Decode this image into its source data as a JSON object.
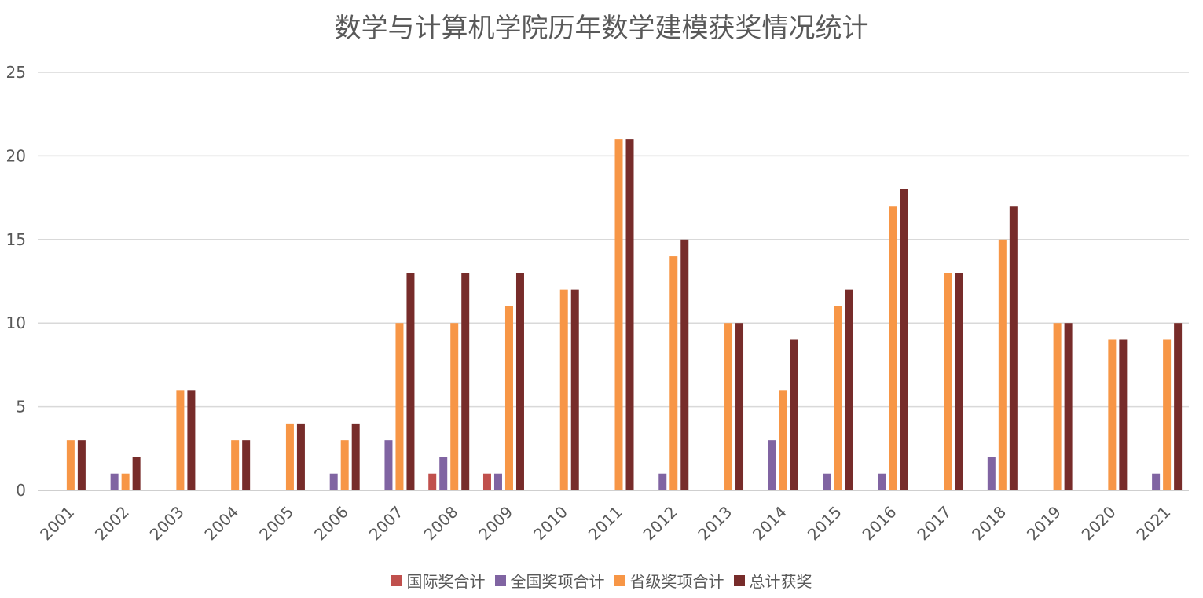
{
  "chart_data": {
    "type": "bar",
    "title": "数学与计算机学院历年数学建模获奖情况统计",
    "categories": [
      "2001",
      "2002",
      "2003",
      "2004",
      "2005",
      "2006",
      "2007",
      "2008",
      "2009",
      "2010",
      "2011",
      "2012",
      "2013",
      "2014",
      "2015",
      "2016",
      "2017",
      "2018",
      "2019",
      "2020",
      "2021"
    ],
    "series": [
      {
        "name": "国际奖合计",
        "color": "#c0504d",
        "values": [
          0,
          0,
          0,
          0,
          0,
          0,
          0,
          1,
          1,
          0,
          0,
          0,
          0,
          0,
          0,
          0,
          0,
          0,
          0,
          0,
          0
        ]
      },
      {
        "name": "全国奖项合计",
        "color": "#8064a2",
        "values": [
          0,
          1,
          0,
          0,
          0,
          1,
          3,
          2,
          1,
          0,
          0,
          1,
          0,
          3,
          1,
          1,
          0,
          2,
          0,
          0,
          1
        ]
      },
      {
        "name": "省级奖项合计",
        "color": "#f79646",
        "values": [
          3,
          1,
          6,
          3,
          4,
          3,
          10,
          10,
          11,
          12,
          21,
          14,
          10,
          6,
          11,
          17,
          13,
          15,
          10,
          9,
          9
        ]
      },
      {
        "name": "总计获奖",
        "color": "#772c2a",
        "values": [
          3,
          2,
          6,
          3,
          4,
          4,
          13,
          13,
          13,
          12,
          21,
          15,
          10,
          9,
          12,
          18,
          13,
          17,
          10,
          9,
          10
        ]
      }
    ],
    "ylim": [
      0,
      25
    ],
    "yticks": [
      "0",
      "5",
      "10",
      "15",
      "20",
      "25"
    ],
    "grid": true,
    "legend_position": "bottom"
  }
}
